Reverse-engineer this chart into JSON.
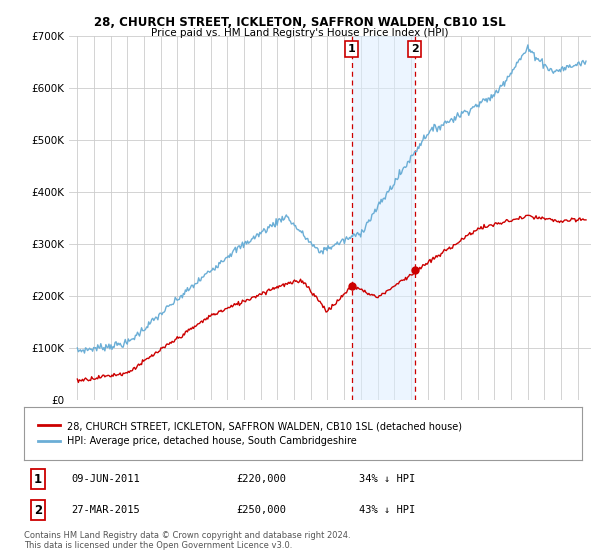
{
  "title1": "28, CHURCH STREET, ICKLETON, SAFFRON WALDEN, CB10 1SL",
  "title2": "Price paid vs. HM Land Registry's House Price Index (HPI)",
  "ylim": [
    0,
    700000
  ],
  "yticks": [
    0,
    100000,
    200000,
    300000,
    400000,
    500000,
    600000,
    700000
  ],
  "ytick_labels": [
    "£0",
    "£100K",
    "£200K",
    "£300K",
    "£400K",
    "£500K",
    "£600K",
    "£700K"
  ],
  "hpi_color": "#6baed6",
  "price_color": "#cc0000",
  "legend1": "28, CHURCH STREET, ICKLETON, SAFFRON WALDEN, CB10 1SL (detached house)",
  "legend2": "HPI: Average price, detached house, South Cambridgeshire",
  "transaction1_date": "09-JUN-2011",
  "transaction1_price": "£220,000",
  "transaction1_hpi": "34% ↓ HPI",
  "transaction2_date": "27-MAR-2015",
  "transaction2_price": "£250,000",
  "transaction2_hpi": "43% ↓ HPI",
  "footnote": "Contains HM Land Registry data © Crown copyright and database right 2024.\nThis data is licensed under the Open Government Licence v3.0.",
  "background_color": "#ffffff",
  "plot_bg_color": "#ffffff",
  "grid_color": "#cccccc",
  "shade_color": "#ddeeff",
  "vline1_x": 2011.44,
  "vline2_x": 2015.23,
  "marker1_year": 2011.44,
  "marker1_price": 220000,
  "marker2_year": 2015.23,
  "marker2_price": 250000,
  "xmin": 1994.5,
  "xmax": 2025.8
}
